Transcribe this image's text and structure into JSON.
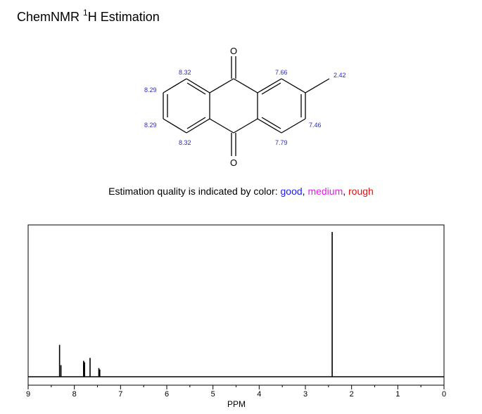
{
  "title": {
    "prefix": "ChemNMR ",
    "superscript": "1",
    "suffix": "H Estimation"
  },
  "quality": {
    "text": "Estimation quality is indicated by color: ",
    "good": "good",
    "sep1": ", ",
    "medium": "medium",
    "sep2": ", ",
    "rough": "rough",
    "colors": {
      "good": "#1a1aff",
      "medium": "#e020e0",
      "rough": "#e01010"
    }
  },
  "molecule": {
    "atoms": {
      "o_top": "O",
      "o_bottom": "O"
    },
    "shifts": {
      "h1": "8.32",
      "h2": "8.29",
      "h3": "8.29",
      "h4": "8.32",
      "h5": "7.79",
      "h6": "7.46",
      "h8": "7.66",
      "ch3": "2.42"
    }
  },
  "chart_data": {
    "type": "line",
    "xlabel": "PPM",
    "xlim": [
      9,
      0
    ],
    "x_reversed": true,
    "xticks": [
      "9",
      "8",
      "7",
      "6",
      "5",
      "4",
      "3",
      "2",
      "1",
      "0"
    ],
    "peaks": [
      {
        "ppm": 8.32,
        "height": 0.22,
        "label": "8.32"
      },
      {
        "ppm": 8.29,
        "height": 0.08,
        "label": "8.29"
      },
      {
        "ppm": 7.8,
        "height": 0.11,
        "label": "7.79"
      },
      {
        "ppm": 7.78,
        "height": 0.1,
        "label": "7.79"
      },
      {
        "ppm": 7.66,
        "height": 0.13,
        "label": "7.66"
      },
      {
        "ppm": 7.47,
        "height": 0.06,
        "label": "7.46"
      },
      {
        "ppm": 7.45,
        "height": 0.05,
        "label": "7.46"
      },
      {
        "ppm": 2.42,
        "height": 1.0,
        "label": "2.42"
      }
    ]
  }
}
